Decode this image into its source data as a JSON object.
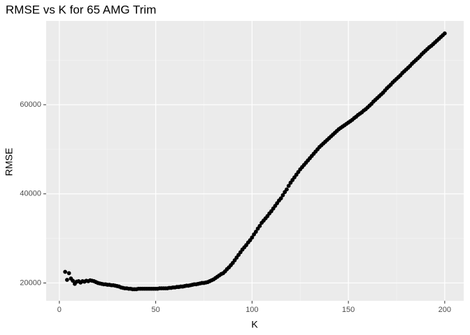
{
  "chart_data": {
    "type": "scatter",
    "title": "RMSE vs K for 65 AMG Trim",
    "x_label": "K",
    "y_label": "RMSE",
    "x": [
      3,
      4,
      5,
      6,
      7,
      8,
      9,
      10,
      11,
      12,
      13,
      14,
      15,
      16,
      17,
      18,
      19,
      20,
      21,
      22,
      23,
      24,
      25,
      26,
      27,
      28,
      29,
      30,
      31,
      32,
      33,
      34,
      35,
      36,
      37,
      38,
      39,
      40,
      41,
      42,
      43,
      44,
      45,
      46,
      47,
      48,
      49,
      50,
      51,
      52,
      53,
      54,
      55,
      56,
      57,
      58,
      59,
      60,
      61,
      62,
      63,
      64,
      65,
      66,
      67,
      68,
      69,
      70,
      71,
      72,
      73,
      74,
      75,
      76,
      77,
      78,
      79,
      80,
      81,
      82,
      83,
      84,
      85,
      86,
      87,
      88,
      89,
      90,
      91,
      92,
      93,
      94,
      95,
      96,
      97,
      98,
      99,
      100,
      101,
      102,
      103,
      104,
      105,
      106,
      107,
      108,
      109,
      110,
      111,
      112,
      113,
      114,
      115,
      116,
      117,
      118,
      119,
      120,
      121,
      122,
      123,
      124,
      125,
      126,
      127,
      128,
      129,
      130,
      131,
      132,
      133,
      134,
      135,
      136,
      137,
      138,
      139,
      140,
      141,
      142,
      143,
      144,
      145,
      146,
      147,
      148,
      149,
      150,
      151,
      152,
      153,
      154,
      155,
      156,
      157,
      158,
      159,
      160,
      161,
      162,
      163,
      164,
      165,
      166,
      167,
      168,
      169,
      170,
      171,
      172,
      173,
      174,
      175,
      176,
      177,
      178,
      179,
      180,
      181,
      182,
      183,
      184,
      185,
      186,
      187,
      188,
      189,
      190,
      191,
      192,
      193,
      194,
      195,
      196,
      197,
      198,
      199,
      200
    ],
    "values": [
      22500,
      20700,
      22200,
      21000,
      20500,
      19800,
      20300,
      20400,
      20100,
      20400,
      20300,
      20500,
      20400,
      20600,
      20500,
      20400,
      20200,
      20000,
      19900,
      19800,
      19700,
      19700,
      19600,
      19600,
      19500,
      19500,
      19400,
      19300,
      19200,
      19000,
      18900,
      18800,
      18800,
      18700,
      18700,
      18600,
      18600,
      18600,
      18700,
      18700,
      18700,
      18700,
      18700,
      18700,
      18700,
      18700,
      18700,
      18700,
      18700,
      18800,
      18800,
      18800,
      18800,
      18800,
      18900,
      18900,
      19000,
      19000,
      19100,
      19100,
      19200,
      19200,
      19300,
      19400,
      19400,
      19500,
      19600,
      19700,
      19700,
      19800,
      19900,
      20000,
      20000,
      20100,
      20200,
      20400,
      20600,
      20800,
      21100,
      21400,
      21700,
      22000,
      22200,
      22600,
      23100,
      23500,
      24000,
      24500,
      25100,
      25700,
      26300,
      26900,
      27500,
      28000,
      28500,
      29100,
      29600,
      30200,
      30900,
      31500,
      32200,
      32800,
      33500,
      34000,
      34500,
      35000,
      35600,
      36100,
      36700,
      37300,
      37900,
      38500,
      39000,
      39700,
      40400,
      41000,
      41800,
      42500,
      43100,
      43700,
      44300,
      44900,
      45500,
      46000,
      46500,
      47000,
      47500,
      48000,
      48500,
      49000,
      49500,
      50000,
      50500,
      50900,
      51300,
      51700,
      52100,
      52500,
      52900,
      53300,
      53700,
      54100,
      54500,
      54800,
      55100,
      55400,
      55700,
      56000,
      56300,
      56600,
      57000,
      57300,
      57700,
      58000,
      58300,
      58700,
      59000,
      59400,
      59800,
      60200,
      60700,
      61100,
      61500,
      61900,
      62300,
      62700,
      63200,
      63700,
      64100,
      64500,
      65000,
      65400,
      65800,
      66200,
      66600,
      67100,
      67500,
      67900,
      68300,
      68700,
      69200,
      69600,
      70000,
      70400,
      70800,
      71300,
      71700,
      72100,
      72500,
      72900,
      73200,
      73600,
      74000,
      74400,
      74800,
      75200,
      75600,
      76000
    ],
    "color": "#000000",
    "xlim": [
      -6.85,
      209.85
    ],
    "xticks": [
      0,
      50,
      100,
      150,
      200
    ],
    "ylim": [
      16000,
      78800
    ],
    "yticks": [
      20000,
      40000,
      60000
    ],
    "grid": true
  }
}
